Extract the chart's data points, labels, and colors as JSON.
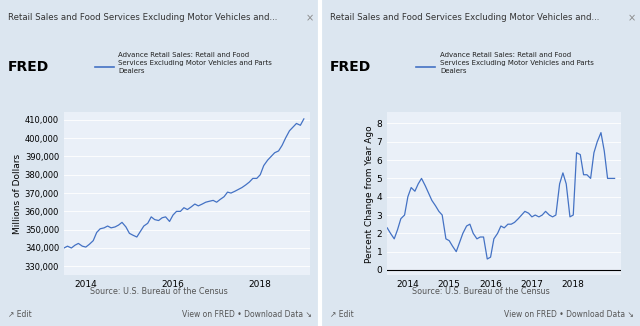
{
  "fig_width": 6.4,
  "fig_height": 3.26,
  "bg_color": "#dce6f0",
  "chart_area_bg": "#eaf0f8",
  "panel_bg": "#dce6f0",
  "title1": "Retail Sales and Food Services Excluding Motor Vehicles and...",
  "title2": "Retail Sales and Food Services Excluding Motor Vehicles and...",
  "legend_text": "Advance Retail Sales: Retail and Food\nServices Excluding Motor Vehicles and Parts\nDealers",
  "source_text": "Source: U.S. Bureau of the Census",
  "footer_left": "↗ Edit",
  "footer_right": "View on FRED • Download Data ↘",
  "ylabel1": "Millions of Dollars",
  "ylabel2": "Percent Change from Year Ago",
  "line_color": "#4472c4",
  "yticks1": [
    330000,
    340000,
    350000,
    360000,
    370000,
    380000,
    390000,
    400000,
    410000
  ],
  "yticks2": [
    0,
    1,
    2,
    3,
    4,
    5,
    6,
    7,
    8
  ],
  "ylim1": [
    325000,
    414000
  ],
  "ylim2": [
    -0.3,
    8.6
  ],
  "xticks1": [
    2014,
    2016,
    2018
  ],
  "xtick_labels1": [
    "2014",
    "2016",
    "2018"
  ],
  "xticks2": [
    2014,
    2015,
    2016,
    2017,
    2018
  ],
  "xtick_labels2": [
    "2014",
    "2015",
    "2016",
    "2017",
    "2018"
  ],
  "xlim": [
    2013.5,
    2019.15
  ],
  "series1_x": [
    2013.5,
    2013.58,
    2013.67,
    2013.75,
    2013.83,
    2013.92,
    2014.0,
    2014.08,
    2014.17,
    2014.25,
    2014.33,
    2014.42,
    2014.5,
    2014.58,
    2014.67,
    2014.75,
    2014.83,
    2014.92,
    2015.0,
    2015.08,
    2015.17,
    2015.25,
    2015.33,
    2015.42,
    2015.5,
    2015.58,
    2015.67,
    2015.75,
    2015.83,
    2015.92,
    2016.0,
    2016.08,
    2016.17,
    2016.25,
    2016.33,
    2016.42,
    2016.5,
    2016.58,
    2016.67,
    2016.75,
    2016.83,
    2016.92,
    2017.0,
    2017.08,
    2017.17,
    2017.25,
    2017.33,
    2017.42,
    2017.5,
    2017.58,
    2017.67,
    2017.75,
    2017.83,
    2017.92,
    2018.0,
    2018.08,
    2018.17,
    2018.25,
    2018.33,
    2018.42,
    2018.5,
    2018.58,
    2018.67,
    2018.75,
    2018.83,
    2018.92,
    2019.0
  ],
  "series1_y": [
    340000,
    341000,
    340000,
    341500,
    342500,
    341000,
    340500,
    342000,
    344000,
    348500,
    350500,
    351000,
    352000,
    351000,
    351500,
    352500,
    354000,
    351500,
    348000,
    347000,
    346000,
    349000,
    352000,
    353500,
    357000,
    355500,
    355000,
    356500,
    357000,
    354500,
    358000,
    360000,
    360000,
    362000,
    361000,
    362500,
    364000,
    363000,
    364000,
    365000,
    365500,
    366000,
    365000,
    366500,
    368000,
    370500,
    370000,
    371000,
    372000,
    373000,
    374500,
    376000,
    378000,
    378000,
    380000,
    385000,
    388000,
    390000,
    392000,
    393000,
    396000,
    400000,
    404000,
    406000,
    408000,
    407000,
    410500
  ],
  "series2_x": [
    2013.5,
    2013.58,
    2013.67,
    2013.75,
    2013.83,
    2013.92,
    2014.0,
    2014.08,
    2014.17,
    2014.25,
    2014.33,
    2014.42,
    2014.5,
    2014.58,
    2014.67,
    2014.75,
    2014.83,
    2014.92,
    2015.0,
    2015.08,
    2015.17,
    2015.25,
    2015.33,
    2015.42,
    2015.5,
    2015.58,
    2015.67,
    2015.75,
    2015.83,
    2015.92,
    2016.0,
    2016.08,
    2016.17,
    2016.25,
    2016.33,
    2016.42,
    2016.5,
    2016.58,
    2016.67,
    2016.75,
    2016.83,
    2016.92,
    2017.0,
    2017.08,
    2017.17,
    2017.25,
    2017.33,
    2017.42,
    2017.5,
    2017.58,
    2017.67,
    2017.75,
    2017.83,
    2017.92,
    2018.0,
    2018.08,
    2018.17,
    2018.25,
    2018.33,
    2018.42,
    2018.5,
    2018.58,
    2018.67,
    2018.75,
    2018.83,
    2018.92,
    2019.0
  ],
  "series2_y": [
    2.3,
    2.0,
    1.7,
    2.2,
    2.8,
    3.0,
    4.0,
    4.5,
    4.3,
    4.7,
    5.0,
    4.6,
    4.2,
    3.8,
    3.5,
    3.2,
    3.0,
    1.7,
    1.6,
    1.3,
    1.0,
    1.5,
    2.0,
    2.4,
    2.5,
    2.0,
    1.7,
    1.8,
    1.8,
    0.6,
    0.7,
    1.7,
    2.0,
    2.4,
    2.3,
    2.5,
    2.5,
    2.6,
    2.8,
    3.0,
    3.2,
    3.1,
    2.9,
    3.0,
    2.9,
    3.0,
    3.2,
    3.0,
    2.9,
    3.0,
    4.7,
    5.3,
    4.7,
    2.9,
    3.0,
    6.4,
    6.3,
    5.2,
    5.2,
    5.0,
    6.4,
    7.0,
    7.5,
    6.5,
    5.0,
    5.0,
    5.0
  ]
}
